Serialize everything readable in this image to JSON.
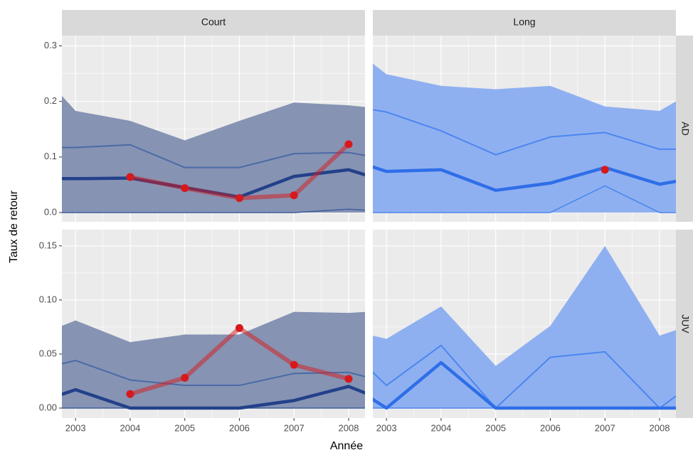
{
  "chart_data": {
    "type": "line",
    "x_label": "Année",
    "y_label": "Taux de retour",
    "columns": [
      "Court",
      "Long"
    ],
    "rows": [
      "AD",
      "JUV"
    ],
    "x": [
      2002,
      2003,
      2004,
      2005,
      2006,
      2007,
      2008,
      2009
    ],
    "xlim": [
      2002.75,
      2008.3
    ],
    "xticks": [
      2003,
      2004,
      2005,
      2006,
      2007,
      2008
    ],
    "grid": true,
    "row_scales": [
      {
        "ylim": [
          -0.0167,
          0.3186
        ],
        "yticks": [
          {
            "value": 0,
            "label": "0.0"
          },
          0.1,
          0.2,
          0.3
        ]
      },
      {
        "ylim": [
          -0.0092,
          0.165
        ],
        "yticks": [
          {
            "value": 0,
            "label": "0.00"
          },
          0.05,
          {
            "value": 0.1,
            "label": "0.10"
          },
          0.15
        ]
      }
    ],
    "panels": [
      [
        {
          "colors": {
            "ribbon": "#8693b3",
            "upper": "#4a6aa6",
            "median": "#23418a",
            "lower": "#3d5d9c",
            "observed": "#d7191c"
          },
          "ribbon_upper": [
            0.291,
            0.183,
            0.165,
            0.13,
            0.165,
            0.198,
            0.193,
            0.183
          ],
          "ribbon_lower": [
            0,
            0,
            0,
            0,
            0,
            0,
            0,
            0
          ],
          "upper": [
            0.117,
            0.117,
            0.122,
            0.081,
            0.081,
            0.106,
            0.108,
            0.091
          ],
          "median": [
            0.061,
            0.061,
            0.062,
            0.045,
            0.028,
            0.065,
            0.077,
            0.047
          ],
          "lower": [
            0,
            0,
            0,
            0,
            0,
            0,
            0.006,
            0
          ],
          "observed": [
            null,
            null,
            0.064,
            0.044,
            0.026,
            0.031,
            0.123,
            null
          ]
        },
        {
          "colors": {
            "ribbon": "#8fb0f0",
            "upper": "#4b86f0",
            "median": "#2f6ee8",
            "lower": "#4b86f0",
            "observed": "#d7191c"
          },
          "ribbon_upper": [
            0.325,
            0.249,
            0.228,
            0.222,
            0.228,
            0.191,
            0.183,
            0.24
          ],
          "ribbon_lower": [
            0,
            0,
            0,
            0,
            0,
            0,
            0,
            0
          ],
          "upper": [
            0.197,
            0.181,
            0.147,
            0.104,
            0.136,
            0.144,
            0.114,
            0.114
          ],
          "median": [
            0.106,
            0.074,
            0.077,
            0.04,
            0.053,
            0.081,
            0.051,
            0.068
          ],
          "lower": [
            0,
            0,
            0,
            0,
            0,
            0.048,
            0,
            0
          ],
          "observed": [
            null,
            null,
            null,
            null,
            null,
            0.077,
            null,
            null
          ]
        }
      ],
      [
        {
          "colors": {
            "ribbon": "#8693b3",
            "upper": "#4a6aa6",
            "median": "#23418a",
            "lower": "#3d5d9c",
            "observed": "#d7191c"
          },
          "ribbon_upper": [
            0.061,
            0.081,
            0.061,
            0.068,
            0.068,
            0.089,
            0.088,
            0.091
          ],
          "ribbon_lower": [
            0,
            0,
            0,
            0,
            0,
            0,
            0,
            0
          ],
          "upper": [
            0.032,
            0.044,
            0.026,
            0.021,
            0.021,
            0.032,
            0.033,
            0.02
          ],
          "median": [
            0,
            0.017,
            0,
            0,
            0,
            0.007,
            0.02,
            0
          ],
          "lower": [
            0,
            0,
            0,
            0,
            0,
            0,
            0,
            0
          ],
          "observed": [
            null,
            null,
            0.013,
            0.028,
            0.074,
            0.04,
            0.027,
            null
          ]
        },
        {
          "colors": {
            "ribbon": "#8fb0f0",
            "upper": "#4b86f0",
            "median": "#2f6ee8",
            "lower": "#4b86f0",
            "observed": "#d7191c"
          },
          "ribbon_upper": [
            0.076,
            0.064,
            0.094,
            0.039,
            0.076,
            0.15,
            0.067,
            0.084
          ],
          "ribbon_lower": [
            0,
            0,
            0,
            0,
            0,
            0,
            0,
            0
          ],
          "upper": [
            0.069,
            0.021,
            0.058,
            0,
            0.047,
            0.052,
            0,
            0.037
          ],
          "median": [
            0.032,
            0,
            0.042,
            0,
            0,
            0,
            0,
            0
          ],
          "lower": [
            0,
            0,
            0,
            0,
            0,
            0,
            0,
            0
          ],
          "observed": [
            null,
            null,
            null,
            null,
            null,
            null,
            null,
            null
          ]
        }
      ]
    ]
  }
}
